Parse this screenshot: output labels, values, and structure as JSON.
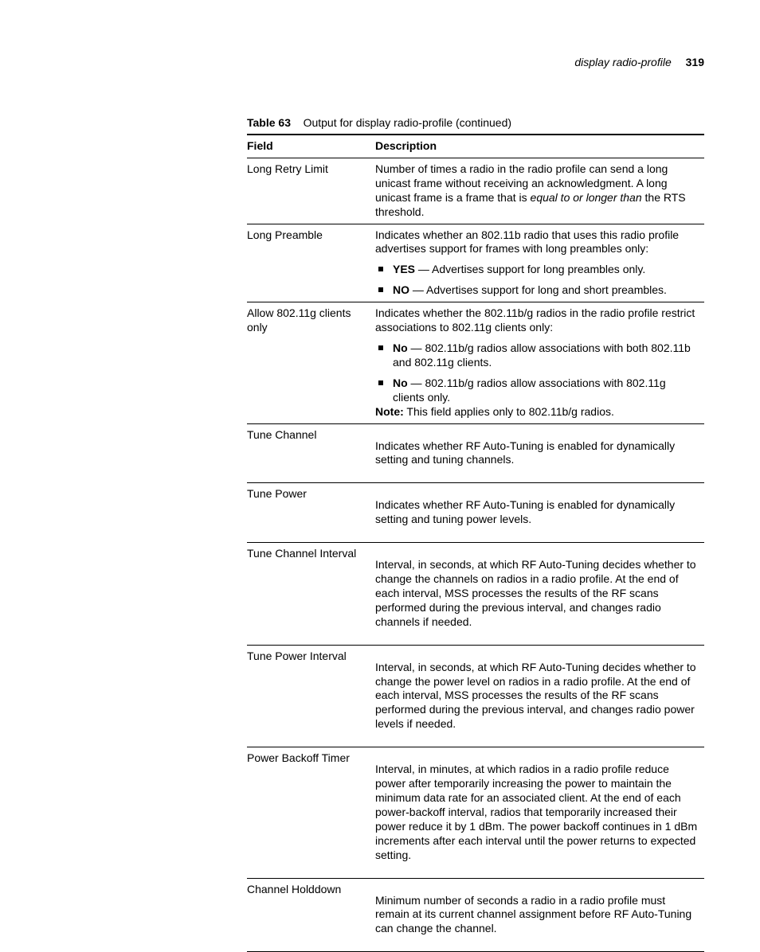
{
  "page": {
    "running_title": "display radio-profile",
    "page_number": "319"
  },
  "table": {
    "caption_label": "Table 63",
    "caption_text": "Output for display radio-profile (continued)",
    "head_field": "Field",
    "head_desc": "Description"
  },
  "rows": {
    "r0": {
      "field": "Long Retry Limit",
      "d1": "Number of times a radio in the radio profile can send a long unicast frame without receiving an acknowledgment. A long unicast frame is a frame that is ",
      "d1_em": "equal to or longer than",
      "d1_tail": " the RTS threshold."
    },
    "r1": {
      "field": "Long Preamble",
      "d1": "Indicates whether an 802.11b radio that uses this radio profile advertises support for frames with long preambles only:",
      "b1_strong": "YES",
      "b1_rest": " — Advertises support for long preambles only.",
      "b2_strong": "NO",
      "b2_rest": " — Advertises support for long and short preambles."
    },
    "r2": {
      "field": "Allow 802.11g clients only",
      "d1": "Indicates whether the 802.11b/g radios in the radio profile restrict associations to 802.11g clients only:",
      "b1_strong": "No",
      "b1_rest": " — 802.11b/g radios allow associations with both 802.11b and 802.11g clients.",
      "b2_strong": "No",
      "b2_rest": " — 802.11b/g radios allow associations with 802.11g clients only.",
      "note_strong": "Note:",
      "note_rest": " This field applies only to 802.11b/g radios."
    },
    "r3": {
      "field": "Tune Channel",
      "d1": "Indicates whether RF Auto-Tuning is enabled for dynamically setting and tuning channels."
    },
    "r4": {
      "field": "Tune Power",
      "d1": "Indicates whether RF Auto-Tuning is enabled for dynamically setting and tuning power levels."
    },
    "r5": {
      "field": "Tune Channel Interval",
      "d1": "Interval, in seconds, at which RF Auto-Tuning decides whether to change the channels on radios in a radio profile. At the end of each interval, MSS processes the results of the RF scans performed during the previous interval, and changes radio channels if needed."
    },
    "r6": {
      "field": "Tune Power Interval",
      "d1": "Interval, in seconds, at which RF Auto-Tuning decides whether to change the power level on radios in a radio profile. At the end of each interval, MSS processes the results of the RF scans performed during the previous interval, and changes radio power levels if needed."
    },
    "r7": {
      "field": "Power Backoff Timer",
      "d1": "Interval, in minutes, at which radios in a radio profile reduce power after temporarily increasing the power to maintain the minimum data rate for an associated client. At the end of each power-backoff interval, radios that temporarily increased their power reduce it by 1 dBm. The power backoff continues in 1 dBm increments after each interval until the power returns to expected setting."
    },
    "r8": {
      "field": "Channel Holddown",
      "d1": "Minimum number of seconds a radio in a radio profile must remain at its current channel assignment before RF Auto-Tuning can change the channel."
    }
  }
}
